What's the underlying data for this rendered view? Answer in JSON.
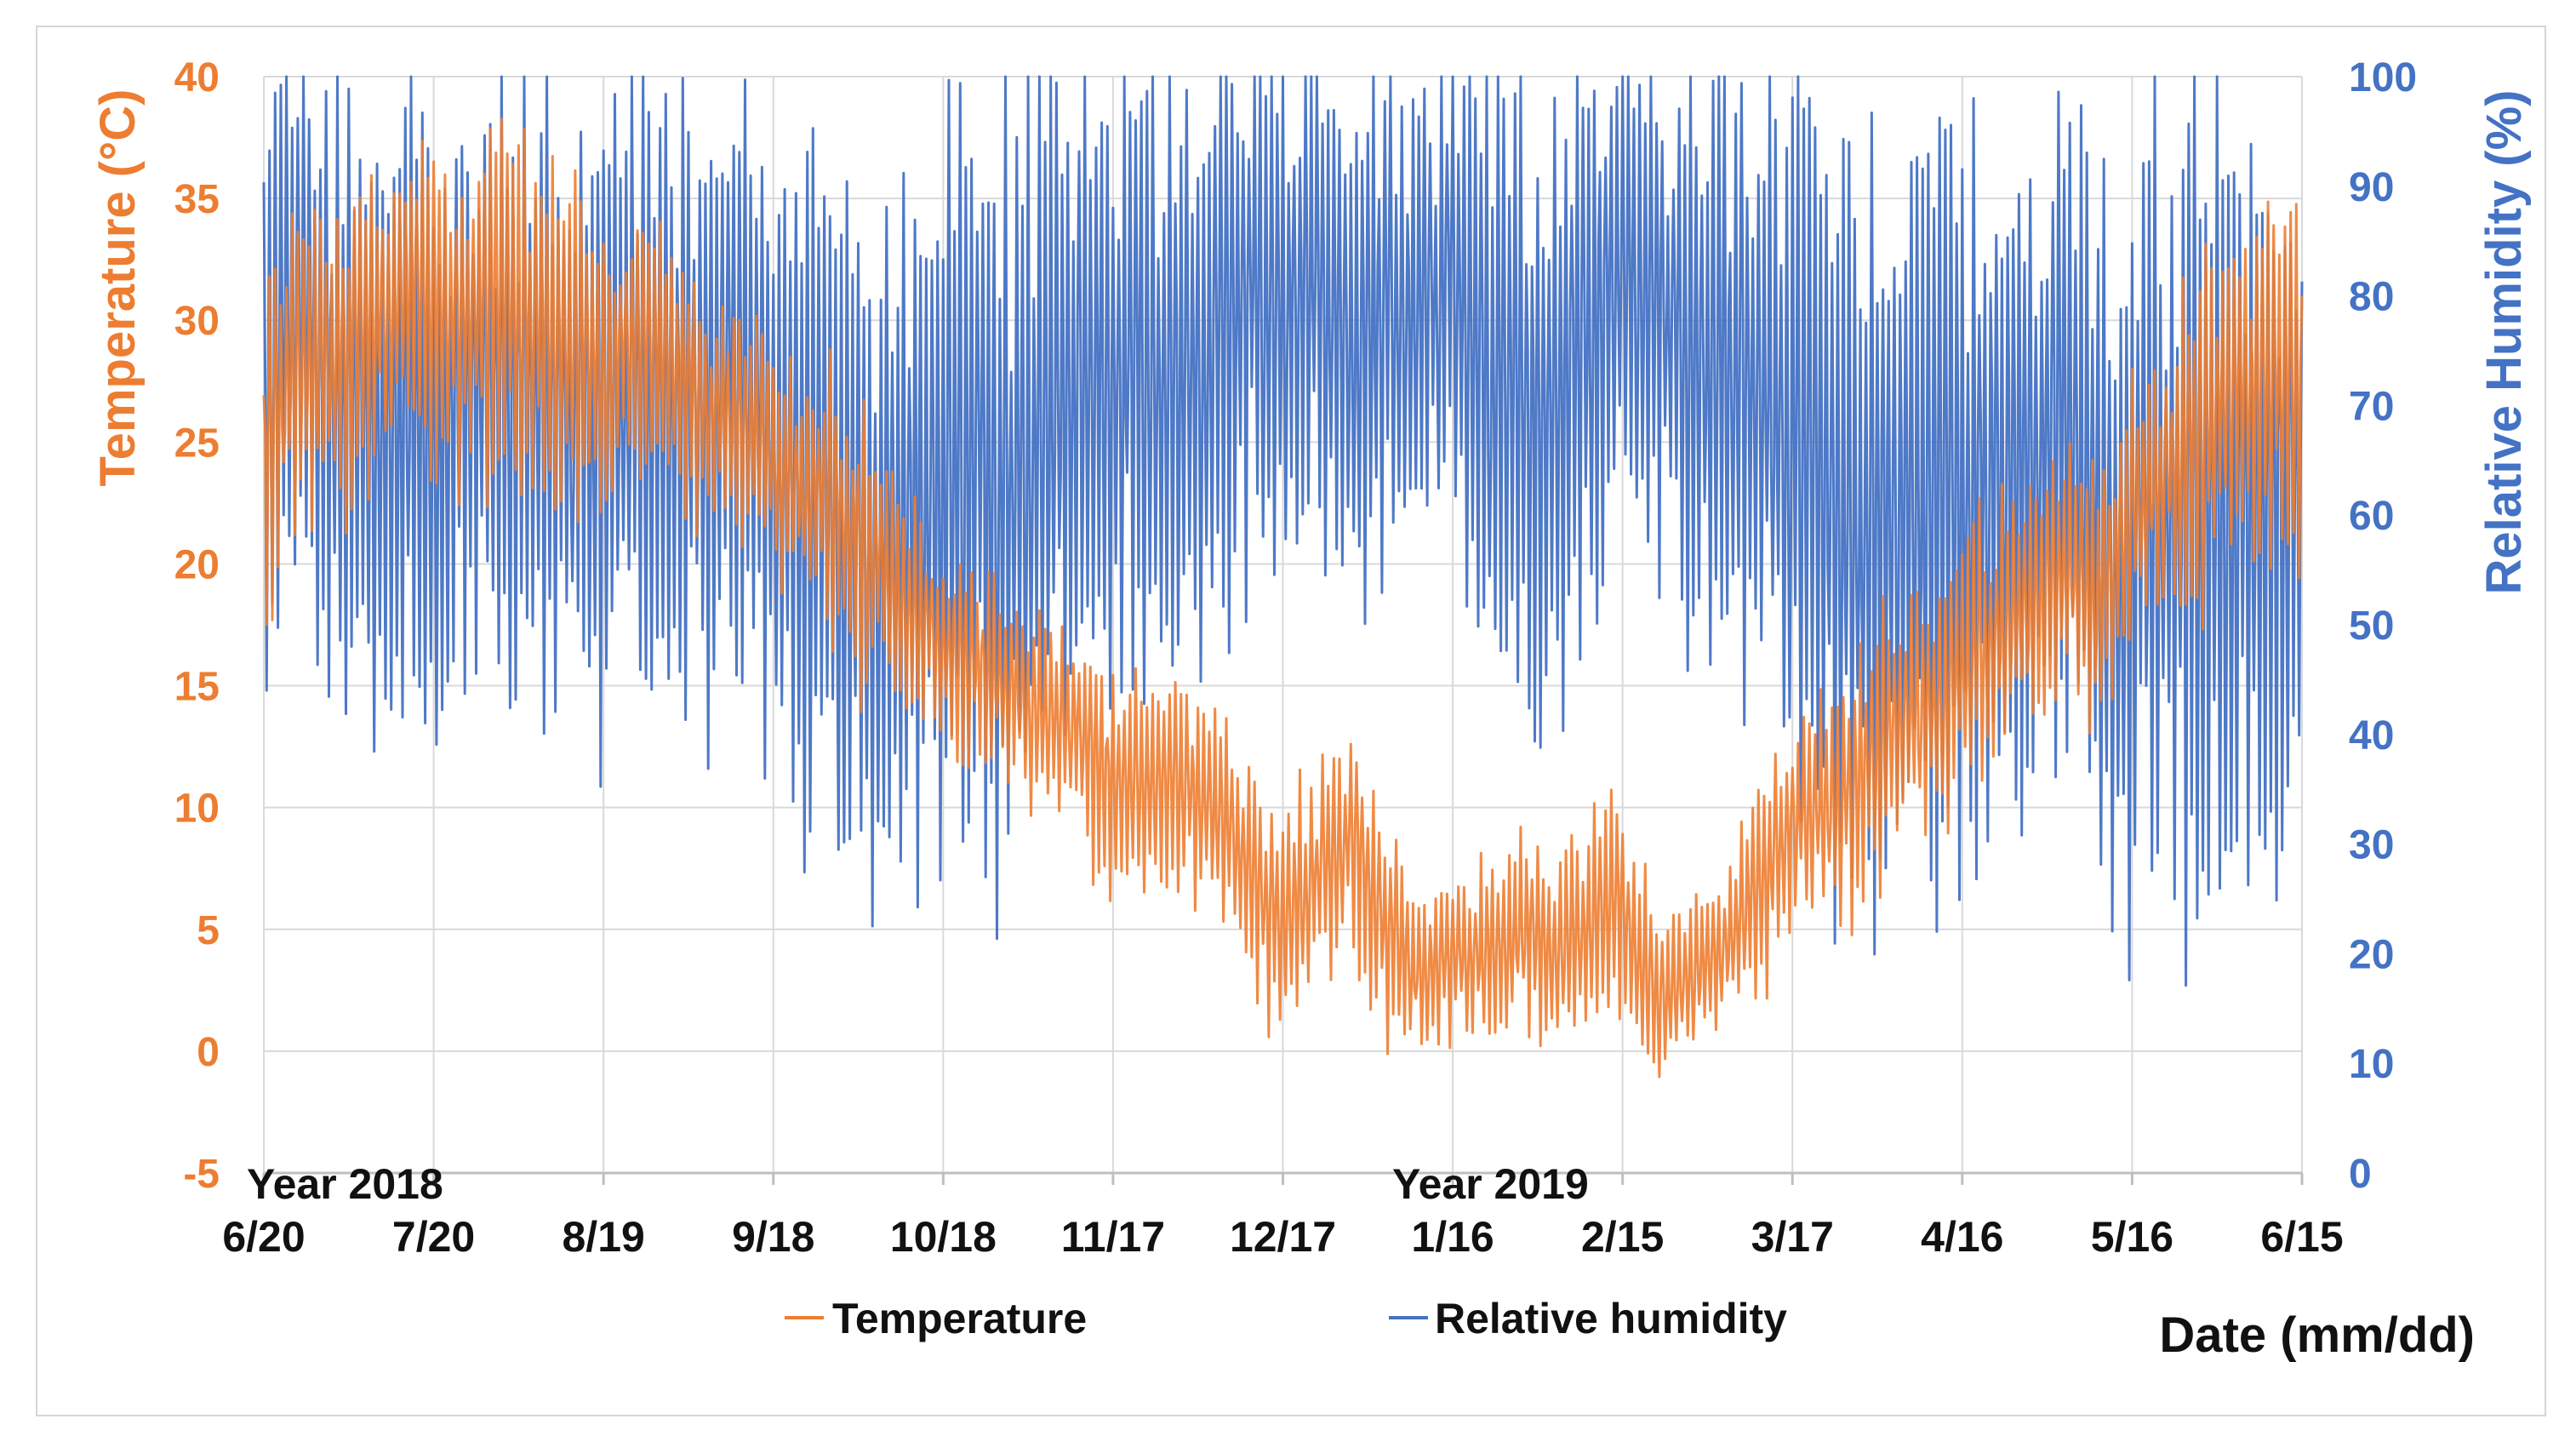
{
  "chart_data": {
    "type": "line",
    "title": "",
    "xlabel": "Date (mm/dd)",
    "ylabel_left": "Temperature (°C)",
    "ylabel_right": "Relative Humidity (%)",
    "ylim_left": [
      -5,
      40
    ],
    "ylim_right": [
      0,
      100
    ],
    "left_ticks": [
      "-5",
      "0",
      "5",
      "10",
      "15",
      "20",
      "25",
      "30",
      "35",
      "40"
    ],
    "right_ticks": [
      "0",
      "10",
      "20",
      "30",
      "40",
      "50",
      "60",
      "70",
      "80",
      "90",
      "100"
    ],
    "x_ticks": [
      "6/20",
      "7/20",
      "8/19",
      "9/18",
      "10/18",
      "11/17",
      "12/17",
      "1/16",
      "2/15",
      "3/17",
      "4/16",
      "5/16",
      "6/15"
    ],
    "x_range_days": [
      0,
      360
    ],
    "annotations": [
      "Year 2018",
      "Year 2019"
    ],
    "grid": true,
    "legend_position": "bottom",
    "series": [
      {
        "name": "Temperature",
        "axis": "left",
        "color": "#ED7D31",
        "x": [
          0,
          6,
          12,
          18,
          24,
          30,
          36,
          42,
          48,
          54,
          60,
          66,
          72,
          78,
          84,
          90,
          96,
          102,
          108,
          114,
          120,
          126,
          132,
          138,
          144,
          150,
          156,
          162,
          168,
          174,
          180,
          186,
          192,
          198,
          204,
          210,
          216,
          222,
          228,
          234,
          240,
          246,
          252,
          258,
          264,
          270,
          276,
          282,
          288,
          294,
          300,
          306,
          312,
          318,
          324,
          330,
          336,
          342,
          348,
          354,
          360
        ],
        "mean": [
          25,
          28,
          28,
          30,
          31,
          31,
          30,
          31,
          30,
          29,
          28,
          29,
          28,
          26,
          26,
          24,
          23,
          22,
          20,
          18,
          17,
          16,
          15,
          14,
          13,
          11,
          11,
          11,
          10,
          7,
          5,
          7,
          9,
          5,
          3,
          4,
          4,
          5,
          4,
          5,
          6,
          2,
          3,
          4,
          7,
          9,
          10,
          11,
          13,
          14,
          15,
          17,
          18,
          20,
          18,
          22,
          24,
          25,
          27,
          28,
          27
        ],
        "amp": [
          6,
          6,
          5,
          6,
          6,
          6,
          6,
          7,
          6,
          6,
          5,
          5,
          5,
          4,
          4,
          4,
          4,
          5,
          5,
          4,
          4,
          4,
          4,
          4,
          4,
          4,
          4,
          4,
          4,
          4,
          4,
          4,
          4,
          4,
          3,
          3,
          3,
          4,
          4,
          4,
          4,
          3,
          3,
          3,
          4,
          4,
          4,
          5,
          5,
          5,
          5,
          5,
          5,
          5,
          5,
          5,
          5,
          6,
          6,
          6,
          6
        ]
      },
      {
        "name": "Relative humidity",
        "axis": "right",
        "color": "#4472C4",
        "x": [
          0,
          6,
          12,
          18,
          24,
          30,
          36,
          42,
          48,
          54,
          60,
          66,
          72,
          78,
          84,
          90,
          96,
          102,
          108,
          114,
          120,
          126,
          132,
          138,
          144,
          150,
          156,
          162,
          168,
          174,
          180,
          186,
          192,
          198,
          204,
          210,
          216,
          222,
          228,
          234,
          240,
          246,
          252,
          258,
          264,
          270,
          276,
          282,
          288,
          294,
          300,
          306,
          312,
          318,
          324,
          330,
          336,
          342,
          348,
          354,
          360
        ],
        "mean": [
          70,
          78,
          72,
          68,
          70,
          66,
          72,
          70,
          72,
          68,
          70,
          72,
          70,
          70,
          72,
          66,
          62,
          58,
          56,
          60,
          62,
          65,
          60,
          68,
          72,
          72,
          74,
          72,
          75,
          80,
          78,
          82,
          74,
          80,
          78,
          82,
          72,
          70,
          68,
          78,
          82,
          80,
          76,
          74,
          72,
          66,
          62,
          58,
          60,
          60,
          62,
          64,
          66,
          68,
          58,
          55,
          62,
          58,
          60,
          62,
          64
        ],
        "amp": [
          22,
          22,
          25,
          26,
          26,
          26,
          25,
          25,
          25,
          25,
          26,
          26,
          25,
          25,
          25,
          26,
          28,
          28,
          28,
          28,
          30,
          32,
          32,
          30,
          28,
          27,
          26,
          27,
          26,
          22,
          22,
          20,
          22,
          22,
          22,
          20,
          26,
          26,
          26,
          24,
          20,
          20,
          24,
          26,
          28,
          30,
          30,
          30,
          30,
          30,
          30,
          30,
          30,
          30,
          32,
          32,
          32,
          32,
          32,
          30,
          30
        ]
      }
    ]
  }
}
